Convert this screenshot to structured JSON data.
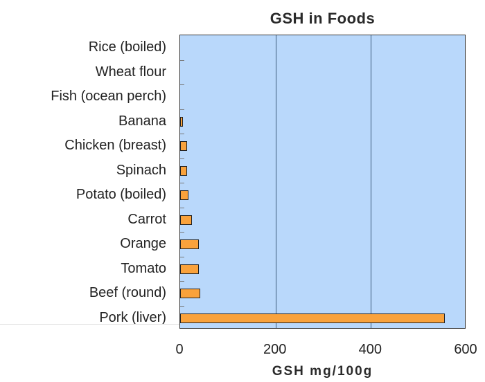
{
  "chart_data": {
    "type": "bar",
    "orientation": "horizontal",
    "title": "GSH in Foods",
    "xlabel": "GSH mg/100g",
    "ylabel": "",
    "xlim": [
      0,
      600
    ],
    "xticks": [
      "0",
      "200",
      "400",
      "600"
    ],
    "grid": true,
    "legend": null,
    "categories": [
      "Rice (boiled)",
      "Wheat flour",
      "Fish (ocean perch)",
      "Banana",
      "Chicken (breast)",
      "Spinach",
      "Potato (boiled)",
      "Carrot",
      "Orange",
      "Tomato",
      "Beef (round)",
      "Pork (liver)"
    ],
    "values": [
      0,
      0,
      0,
      6,
      15,
      15,
      17,
      24,
      39,
      39,
      42,
      555
    ],
    "colors": {
      "bar": "#f9a23c",
      "plot_bg": "#b9d8fb",
      "border": "#222222"
    }
  }
}
